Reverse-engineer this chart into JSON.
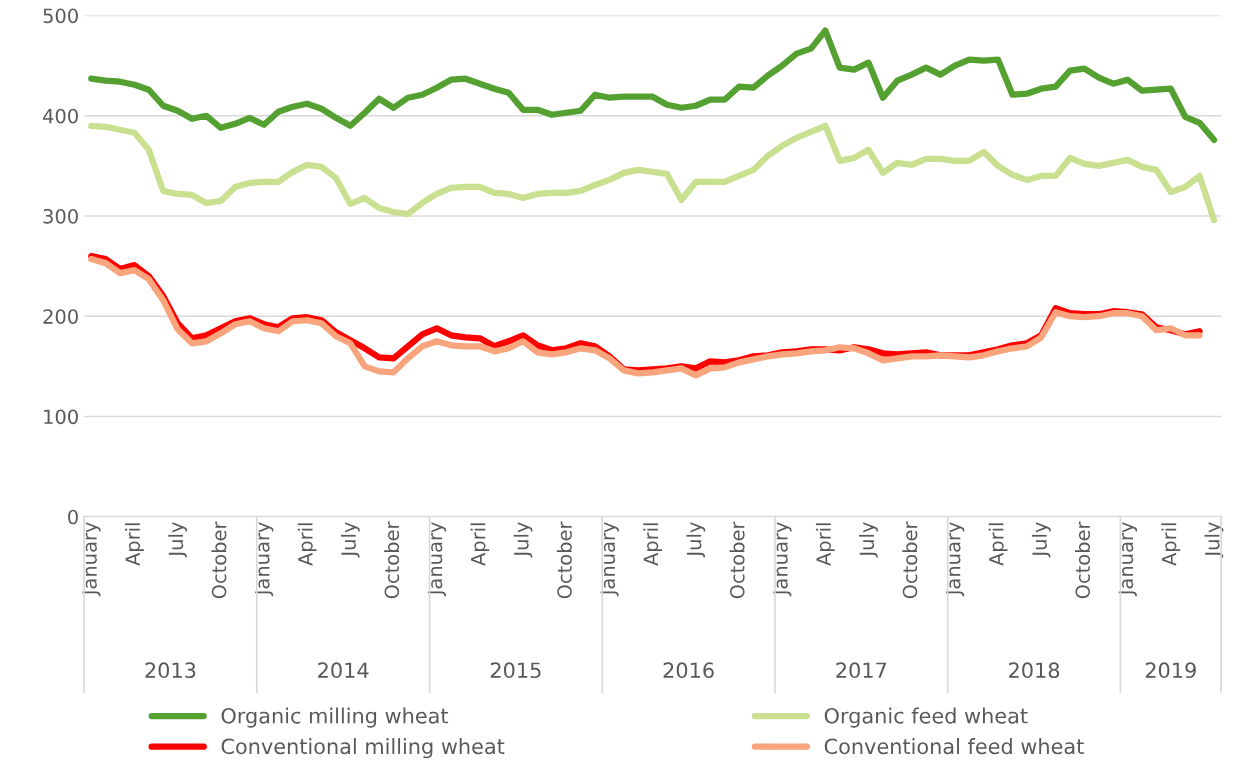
{
  "chart_data": {
    "type": "line",
    "categories": [
      "January",
      null,
      null,
      "April",
      null,
      null,
      "July",
      null,
      null,
      "October",
      null,
      null,
      "January",
      null,
      null,
      "April",
      null,
      null,
      "July",
      null,
      null,
      "October",
      null,
      null,
      "January",
      null,
      null,
      "April",
      null,
      null,
      "July",
      null,
      null,
      "October",
      null,
      null,
      "January",
      null,
      null,
      "April",
      null,
      null,
      "July",
      null,
      null,
      "October",
      null,
      null,
      "January",
      null,
      null,
      "April",
      null,
      null,
      "July",
      null,
      null,
      "October",
      null,
      null,
      "January",
      null,
      null,
      "April",
      null,
      null,
      "July",
      null,
      null,
      "October",
      null,
      null,
      "January",
      null,
      null,
      "April",
      null,
      null,
      "July"
    ],
    "annotations": [
      "2013",
      "2014",
      "2015",
      "2016",
      "2017",
      "2018",
      "2019"
    ],
    "series": [
      {
        "name": "Organic milling wheat",
        "color": "#54a131",
        "values": [
          437,
          435,
          434,
          431,
          426,
          410,
          405,
          397,
          400,
          388,
          392,
          398,
          391,
          404,
          409,
          412,
          407,
          398,
          390,
          403,
          417,
          408,
          418,
          421,
          428,
          436,
          437,
          432,
          427,
          423,
          406,
          406,
          401,
          403,
          405,
          421,
          418,
          419,
          419,
          419,
          411,
          408,
          410,
          416,
          416,
          429,
          428,
          440,
          450,
          462,
          467,
          485,
          448,
          446,
          453,
          418,
          435,
          441,
          448,
          441,
          450,
          456,
          455,
          456,
          421,
          422,
          427,
          429,
          445,
          447,
          438,
          432,
          436,
          425,
          426,
          427,
          399,
          393,
          376
        ]
      },
      {
        "name": "Organic feed wheat",
        "color": "#c9e091",
        "values": [
          390,
          389,
          386,
          383,
          366,
          325,
          322,
          321,
          313,
          315,
          329,
          333,
          334,
          334,
          344,
          351,
          349,
          338,
          312,
          318,
          308,
          304,
          302,
          313,
          322,
          328,
          329,
          329,
          323,
          322,
          318,
          322,
          323,
          323,
          325,
          331,
          336,
          343,
          346,
          344,
          342,
          316,
          334,
          334,
          334,
          340,
          346,
          360,
          370,
          378,
          384,
          390,
          355,
          358,
          366,
          343,
          353,
          351,
          357,
          357,
          355,
          355,
          364,
          350,
          341,
          336,
          340,
          340,
          358,
          352,
          350,
          353,
          356,
          349,
          346,
          324,
          329,
          340,
          296
        ]
      },
      {
        "name": "Conventional milling wheat",
        "color": "#ff0000",
        "values": [
          260,
          257,
          247,
          251,
          240,
          220,
          193,
          178,
          181,
          188,
          195,
          198,
          192,
          189,
          198,
          199,
          196,
          184,
          176,
          168,
          159,
          158,
          170,
          182,
          188,
          181,
          179,
          178,
          170,
          175,
          181,
          171,
          166,
          168,
          173,
          170,
          160,
          147,
          146,
          147,
          148,
          150,
          148,
          155,
          154,
          156,
          160,
          161,
          164,
          165,
          167,
          167,
          166,
          169,
          167,
          163,
          162,
          163,
          164,
          161,
          161,
          161,
          164,
          167,
          171,
          173,
          181,
          208,
          203,
          202,
          202,
          205,
          204,
          202,
          189,
          186,
          182,
          185,
          null
        ]
      },
      {
        "name": "Conventional feed wheat",
        "color": "#f8a47c",
        "values": [
          257,
          253,
          243,
          246,
          237,
          216,
          187,
          173,
          175,
          183,
          192,
          195,
          188,
          185,
          195,
          196,
          193,
          180,
          173,
          150,
          145,
          144,
          158,
          170,
          175,
          171,
          170,
          170,
          165,
          168,
          175,
          164,
          162,
          164,
          168,
          166,
          158,
          146,
          143,
          144,
          146,
          148,
          141,
          148,
          149,
          154,
          157,
          160,
          162,
          163,
          165,
          166,
          169,
          168,
          163,
          156,
          158,
          160,
          160,
          161,
          160,
          159,
          161,
          165,
          168,
          170,
          179,
          204,
          200,
          199,
          200,
          203,
          203,
          200,
          186,
          188,
          181,
          181,
          null
        ]
      }
    ],
    "ylim": [
      0,
      500
    ],
    "yticks": [
      0,
      100,
      200,
      300,
      400,
      500
    ],
    "grid": "y",
    "legend": "bottom",
    "marker": "none",
    "line_style": "solid"
  }
}
